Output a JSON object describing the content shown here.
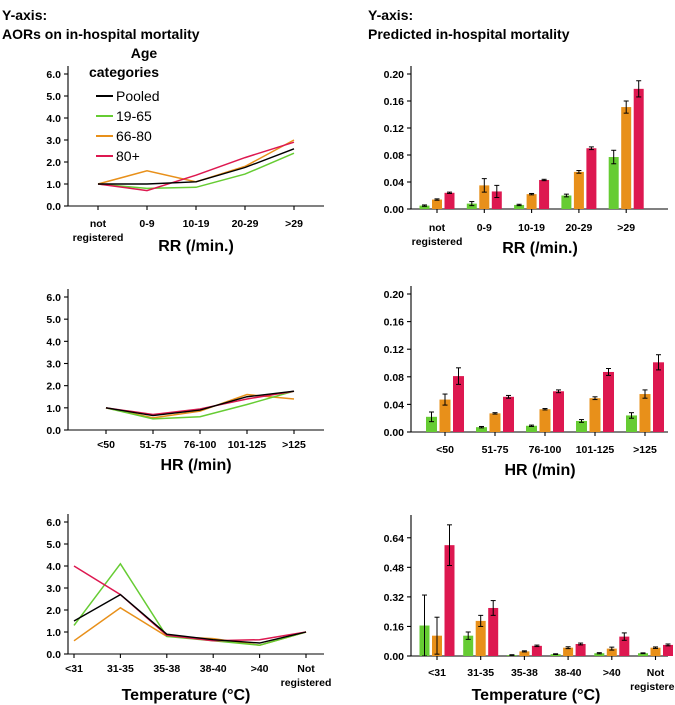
{
  "headers": {
    "left_line1": "Y-axis:",
    "left_line2": "AORs on in-hospital mortality",
    "right_line1": "Y-axis:",
    "right_line2": "Predicted in-hospital mortality"
  },
  "colors": {
    "Pooled": "#000000",
    "19-65": "#66cc33",
    "66-80": "#e8901a",
    "80+": "#dd1850"
  },
  "legend": {
    "title_line1": "Age",
    "title_line2": "categories",
    "entries": [
      "Pooled",
      "19-65",
      "66-80",
      "80+"
    ]
  },
  "chart_data": [
    {
      "id": "rr_aor",
      "type": "line",
      "xlabel": "RR (/min.)",
      "ylabel": "",
      "categories": [
        "not registered",
        "0-9",
        "10-19",
        "20-29",
        ">29"
      ],
      "ylim": [
        0,
        6
      ],
      "yticks": [
        "0.0",
        "1.0",
        "2.0",
        "3.0",
        "4.0",
        "5.0",
        "6.0"
      ],
      "series": [
        {
          "name": "Pooled",
          "values": [
            1.0,
            1.0,
            1.1,
            1.75,
            2.6
          ]
        },
        {
          "name": "19-65",
          "values": [
            1.0,
            0.8,
            0.85,
            1.45,
            2.4
          ]
        },
        {
          "name": "66-80",
          "values": [
            1.0,
            1.6,
            1.1,
            1.8,
            3.0
          ]
        },
        {
          "name": "80+",
          "values": [
            1.0,
            0.7,
            1.4,
            2.2,
            2.9
          ]
        }
      ]
    },
    {
      "id": "hr_aor",
      "type": "line",
      "xlabel": "HR (/min)",
      "ylabel": "",
      "categories": [
        "<50",
        "51-75",
        "76-100",
        "101-125",
        ">125"
      ],
      "ylim": [
        0,
        6
      ],
      "yticks": [
        "0.0",
        "1.0",
        "2.0",
        "3.0",
        "4.0",
        "5.0",
        "6.0"
      ],
      "series": [
        {
          "name": "Pooled",
          "values": [
            1.0,
            0.65,
            0.9,
            1.5,
            1.75
          ]
        },
        {
          "name": "19-65",
          "values": [
            1.0,
            0.5,
            0.6,
            1.15,
            1.75
          ]
        },
        {
          "name": "66-80",
          "values": [
            1.0,
            0.55,
            0.85,
            1.6,
            1.4
          ]
        },
        {
          "name": "80+",
          "values": [
            1.0,
            0.7,
            0.95,
            1.4,
            1.75
          ]
        }
      ]
    },
    {
      "id": "temp_aor",
      "type": "line",
      "xlabel": "Temperature (°C)",
      "ylabel": "",
      "categories": [
        "<31",
        "31-35",
        "35-38",
        "38-40",
        ">40",
        "Not registered"
      ],
      "ylim": [
        0,
        6
      ],
      "yticks": [
        "0.0",
        "1.0",
        "2.0",
        "3.0",
        "4.0",
        "5.0",
        "6.0"
      ],
      "series": [
        {
          "name": "Pooled",
          "values": [
            1.5,
            2.7,
            0.9,
            0.65,
            0.5,
            1.0
          ]
        },
        {
          "name": "19-65",
          "values": [
            1.3,
            4.1,
            0.8,
            0.6,
            0.4,
            1.0
          ]
        },
        {
          "name": "66-80",
          "values": [
            0.6,
            2.1,
            0.8,
            0.7,
            0.4,
            1.0
          ]
        },
        {
          "name": "80+",
          "values": [
            4.0,
            2.7,
            0.85,
            0.6,
            0.65,
            1.0
          ]
        }
      ]
    },
    {
      "id": "rr_pred",
      "type": "bar",
      "xlabel": "RR (/min.)",
      "ylabel": "",
      "categories": [
        "not registered",
        "0-9",
        "10-19",
        "20-29",
        ">29"
      ],
      "ylim": [
        0,
        0.2
      ],
      "yticks": [
        "0.00",
        "0.04",
        "0.08",
        "0.12",
        "0.16",
        "0.20"
      ],
      "series": [
        {
          "name": "19-65",
          "values": [
            0.005,
            0.008,
            0.006,
            0.02,
            0.077
          ],
          "err": [
            0.001,
            0.003,
            0.001,
            0.002,
            0.01
          ]
        },
        {
          "name": "66-80",
          "values": [
            0.014,
            0.035,
            0.022,
            0.055,
            0.151
          ],
          "err": [
            0.001,
            0.01,
            0.001,
            0.002,
            0.009
          ]
        },
        {
          "name": "80+",
          "values": [
            0.024,
            0.026,
            0.043,
            0.09,
            0.178
          ],
          "err": [
            0.001,
            0.009,
            0.001,
            0.002,
            0.012
          ]
        }
      ]
    },
    {
      "id": "hr_pred",
      "type": "bar",
      "xlabel": "HR (/min)",
      "ylabel": "",
      "categories": [
        "<50",
        "51-75",
        "76-100",
        "101-125",
        ">125"
      ],
      "ylim": [
        0,
        0.2
      ],
      "yticks": [
        "0.00",
        "0.04",
        "0.08",
        "0.12",
        "0.16",
        "0.20"
      ],
      "series": [
        {
          "name": "19-65",
          "values": [
            0.022,
            0.007,
            0.009,
            0.016,
            0.024
          ],
          "err": [
            0.007,
            0.001,
            0.001,
            0.002,
            0.004
          ]
        },
        {
          "name": "66-80",
          "values": [
            0.047,
            0.027,
            0.033,
            0.049,
            0.055
          ],
          "err": [
            0.008,
            0.001,
            0.001,
            0.002,
            0.006
          ]
        },
        {
          "name": "80+",
          "values": [
            0.081,
            0.051,
            0.059,
            0.087,
            0.101
          ],
          "err": [
            0.012,
            0.002,
            0.002,
            0.005,
            0.011
          ]
        }
      ]
    },
    {
      "id": "temp_pred",
      "type": "bar",
      "xlabel": "Temperature (°C)",
      "ylabel": "",
      "categories": [
        "<31",
        "31-35",
        "35-38",
        "38-40",
        ">40",
        "Not registered"
      ],
      "ylim": [
        0,
        0.72
      ],
      "yticks": [
        "0.00",
        "0.16",
        "0.32",
        "0.48",
        "0.64"
      ],
      "series": [
        {
          "name": "19-65",
          "values": [
            0.165,
            0.11,
            0.005,
            0.01,
            0.015,
            0.015
          ],
          "err": [
            0.165,
            0.02,
            0.002,
            0.002,
            0.003,
            0.002
          ]
        },
        {
          "name": "66-80",
          "values": [
            0.11,
            0.19,
            0.025,
            0.045,
            0.04,
            0.045
          ],
          "err": [
            0.1,
            0.03,
            0.003,
            0.005,
            0.008,
            0.004
          ]
        },
        {
          "name": "80+",
          "values": [
            0.6,
            0.26,
            0.055,
            0.065,
            0.105,
            0.06
          ],
          "err": [
            0.11,
            0.04,
            0.004,
            0.005,
            0.02,
            0.005
          ]
        }
      ]
    }
  ]
}
